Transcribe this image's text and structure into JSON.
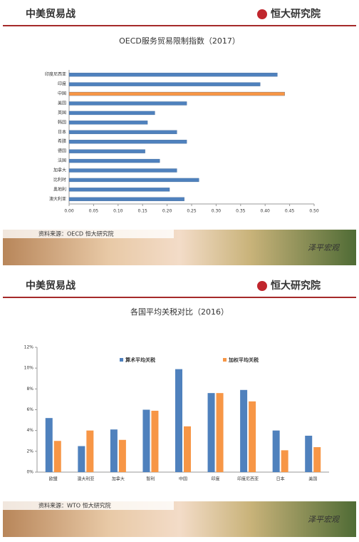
{
  "slides": [
    {
      "header": "中美贸易战",
      "brand": "恒大研究院",
      "source": "资料来源：OECD  恒大研究院",
      "watermark": "泽平宏观"
    },
    {
      "header": "中美贸易战",
      "brand": "恒大研究院",
      "source": "资料来源：WTO  恒大研究院",
      "watermark": "泽平宏观"
    }
  ],
  "chart_data": [
    {
      "type": "hbar",
      "title": "OECD服务贸易限制指数（2017）",
      "categories": [
        "印度尼西亚",
        "印度",
        "中国",
        "美国",
        "英国",
        "韩国",
        "日本",
        "希腊",
        "德国",
        "法国",
        "加拿大",
        "比利时",
        "奥地利",
        "澳大利亚"
      ],
      "values": [
        0.425,
        0.39,
        0.44,
        0.24,
        0.175,
        0.16,
        0.22,
        0.24,
        0.155,
        0.185,
        0.22,
        0.265,
        0.205,
        0.235
      ],
      "colors": [
        "#4f81bd",
        "#4f81bd",
        "#f79646",
        "#4f81bd",
        "#4f81bd",
        "#4f81bd",
        "#4f81bd",
        "#4f81bd",
        "#4f81bd",
        "#4f81bd",
        "#4f81bd",
        "#4f81bd",
        "#4f81bd",
        "#4f81bd"
      ],
      "xlim": [
        0,
        0.5
      ],
      "xticks": [
        {
          "value": 0,
          "label": "0.00"
        },
        {
          "value": 0.05,
          "label": "0.05"
        },
        {
          "value": 0.1,
          "label": "0.10"
        },
        {
          "value": 0.15,
          "label": "0.15"
        },
        {
          "value": 0.2,
          "label": "0.20"
        },
        {
          "value": 0.25,
          "label": "0.25"
        },
        {
          "value": 0.3,
          "label": "0.30"
        },
        {
          "value": 0.35,
          "label": "0.35"
        },
        {
          "value": 0.4,
          "label": "0.40"
        },
        {
          "value": 0.45,
          "label": "0.45"
        },
        {
          "value": 0.5,
          "label": "0.50"
        }
      ]
    },
    {
      "type": "groupbar",
      "title": "各国平均关税对比（2016）",
      "categories": [
        "欧盟",
        "澳大利亚",
        "加拿大",
        "智利",
        "中国",
        "印度",
        "印度尼西亚",
        "日本",
        "美国"
      ],
      "series": [
        {
          "name": "算术平均关税",
          "color": "#4f81bd",
          "values": [
            5.2,
            2.5,
            4.1,
            6.0,
            9.9,
            7.6,
            7.9,
            4.0,
            3.5
          ]
        },
        {
          "name": "加权平均关税",
          "color": "#f79646",
          "values": [
            3.0,
            4.0,
            3.1,
            5.9,
            4.4,
            7.6,
            6.8,
            2.1,
            2.4
          ]
        }
      ],
      "ylim": [
        0,
        12
      ],
      "yticks": [
        {
          "value": 0,
          "label": "0%"
        },
        {
          "value": 2,
          "label": "2%"
        },
        {
          "value": 4,
          "label": "4%"
        },
        {
          "value": 6,
          "label": "6%"
        },
        {
          "value": 8,
          "label": "8%"
        },
        {
          "value": 10,
          "label": "10%"
        },
        {
          "value": 12,
          "label": "12%"
        }
      ]
    }
  ]
}
